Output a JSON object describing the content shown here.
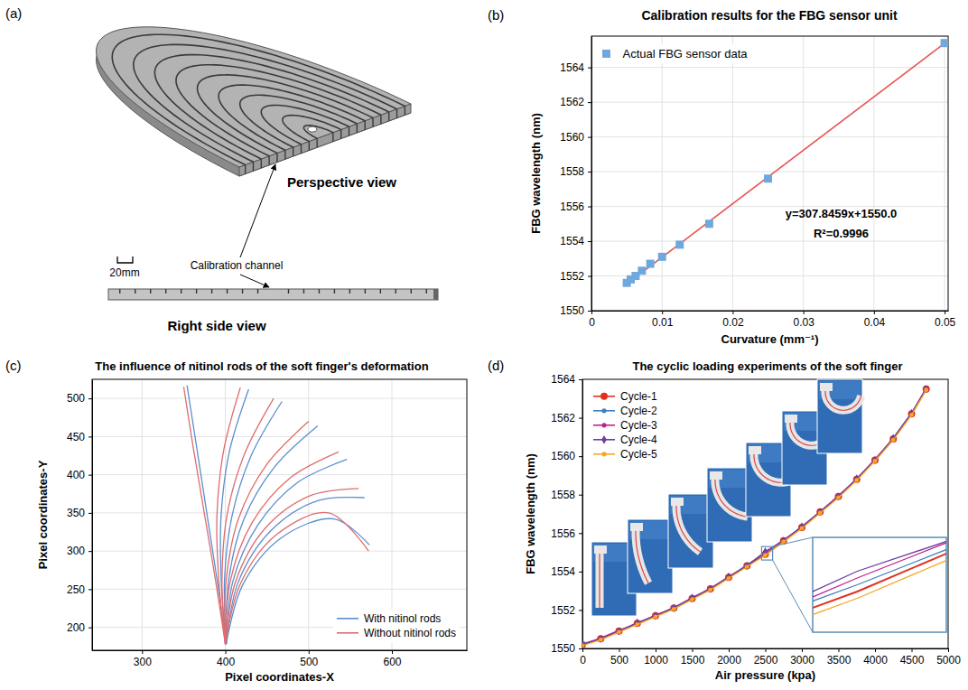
{
  "diagram": {
    "label": "(a)",
    "perspective_view": "Perspective view",
    "annotation": "Calibration channel",
    "scale_bar": "20mm",
    "side_view": "Right side view"
  },
  "chart_data": [
    {
      "label": "(b)",
      "type": "scatter",
      "title": "Calibration results for the FBG sensor unit",
      "x_label": "Curvature (mm⁻¹)",
      "y_label": "FBG wavelength (nm)",
      "xlim": [
        0,
        0.0505
      ],
      "ylim": [
        1550,
        1565.8
      ],
      "xticks": [
        0,
        0.01,
        0.02,
        0.03,
        0.04,
        0.05
      ],
      "yticks": [
        1550,
        1552,
        1554,
        1556,
        1558,
        1560,
        1562,
        1564
      ],
      "grid": true,
      "legend": "upper left",
      "annotations": [
        "y=307.8459x+1550.0",
        "R²=0.9996"
      ],
      "series": [
        {
          "name": "Actual FBG sensor data",
          "type": "scatter",
          "marker": "square",
          "color": "#6fa8dc",
          "x": [
            0.005,
            0.00556,
            0.00625,
            0.00714,
            0.00833,
            0.01,
            0.0125,
            0.01667,
            0.025,
            0.05
          ],
          "values": [
            1551.6,
            1551.8,
            1552.0,
            1552.3,
            1552.7,
            1553.1,
            1553.8,
            1555.0,
            1557.6,
            1565.4
          ]
        },
        {
          "type": "line",
          "line_style": "solid",
          "color": "#e8534f",
          "x": [
            0.005,
            0.05
          ],
          "values": [
            1551.54,
            1565.39
          ]
        }
      ]
    },
    {
      "label": "(c)",
      "type": "line",
      "title": "The influence of nitinol rods of the soft finger's deformation",
      "x_label": "Pixel coordinates-X",
      "y_label": "Pixel coordinates-Y",
      "xlim": [
        240,
        690
      ],
      "ylim": [
        170,
        525
      ],
      "xticks": [
        300,
        400,
        500,
        600
      ],
      "yticks": [
        200,
        250,
        300,
        350,
        400,
        450,
        500
      ],
      "grid": true,
      "legend": "lower right",
      "series": [
        {
          "name": "With nitinol rods",
          "color": "#5b8fd0",
          "line_style": "solid",
          "curves": [
            {
              "x": [
                401,
                390,
                378,
                366,
                354
              ],
              "values": [
                178,
                263,
                348,
                433,
                517
              ]
            },
            {
              "x": [
                401,
                395,
                395,
                405,
                428
              ],
              "values": [
                178,
                263,
                348,
                431,
                512
              ]
            },
            {
              "x": [
                401,
                399,
                408,
                431,
                468
              ],
              "values": [
                178,
                263,
                346,
                425,
                496
              ]
            },
            {
              "x": [
                401,
                404,
                422,
                459,
                511
              ],
              "values": [
                178,
                262,
                341,
                410,
                464
              ]
            },
            {
              "x": [
                401,
                409,
                439,
                487,
                546
              ],
              "values": [
                178,
                260,
                334,
                390,
                420
              ]
            },
            {
              "x": [
                401,
                415,
                454,
                511,
                567
              ],
              "values": [
                178,
                258,
                326,
                366,
                370
              ]
            },
            {
              "x": [
                401,
                421,
                468,
                531,
                573
              ],
              "values": [
                178,
                256,
                318,
                342,
                308
              ]
            }
          ]
        },
        {
          "name": "Without nitinol rods",
          "color": "#e06c6c",
          "line_style": "solid",
          "curves": [
            {
              "x": [
                400,
                388,
                375,
                362,
                350
              ],
              "values": [
                178,
                263,
                348,
                432,
                515
              ]
            },
            {
              "x": [
                400,
                392,
                390,
                398,
                418
              ],
              "values": [
                178,
                263,
                348,
                432,
                514
              ]
            },
            {
              "x": [
                400,
                396,
                402,
                423,
                458
              ],
              "values": [
                178,
                263,
                347,
                427,
                500
              ]
            },
            {
              "x": [
                400,
                401,
                416,
                450,
                500
              ],
              "values": [
                178,
                262,
                343,
                414,
                470
              ]
            },
            {
              "x": [
                400,
                406,
                432,
                478,
                536
              ],
              "values": [
                178,
                261,
                337,
                396,
                430
              ]
            },
            {
              "x": [
                400,
                412,
                448,
                503,
                560
              ],
              "values": [
                178,
                259,
                330,
                373,
                382
              ]
            },
            {
              "x": [
                400,
                418,
                462,
                524,
                572
              ],
              "values": [
                178,
                257,
                322,
                350,
                300
              ]
            }
          ]
        }
      ]
    },
    {
      "label": "(d)",
      "type": "line",
      "title": "The cyclic loading experiments of the soft finger",
      "x_label": "Air pressure (kpa)",
      "y_label": "FBG wavelength (nm)",
      "xlim": [
        0,
        5000
      ],
      "ylim": [
        1550,
        1564
      ],
      "xticks": [
        0,
        500,
        1000,
        1500,
        2000,
        2500,
        3000,
        3500,
        4000,
        4500,
        5000
      ],
      "yticks": [
        1550,
        1552,
        1554,
        1556,
        1558,
        1560,
        1562,
        1564
      ],
      "grid": false,
      "legend": "upper left",
      "zoom": {
        "xlim": [
          2450,
          2600
        ],
        "ylim": [
          1554.6,
          1555.3
        ]
      },
      "x": [
        0,
        250,
        500,
        750,
        1000,
        1250,
        1500,
        1750,
        2000,
        2250,
        2500,
        2750,
        3000,
        3250,
        3500,
        3750,
        4000,
        4250,
        4500,
        4700
      ],
      "series": [
        {
          "name": "Cycle-1",
          "color": "#e0301e",
          "marker": "circle",
          "line_style": "solid",
          "values": [
            1550.2,
            1550.5,
            1550.9,
            1551.3,
            1551.7,
            1552.1,
            1552.6,
            1553.1,
            1553.7,
            1554.3,
            1554.9,
            1555.6,
            1556.3,
            1557.1,
            1557.9,
            1558.8,
            1559.8,
            1560.9,
            1562.2,
            1563.5
          ]
        },
        {
          "name": "Cycle-2",
          "color": "#3f7fbf",
          "marker": "circle",
          "line_style": "solid",
          "values": [
            1550.25,
            1550.5,
            1550.9,
            1551.3,
            1551.7,
            1552.15,
            1552.6,
            1553.1,
            1553.7,
            1554.35,
            1554.95,
            1555.6,
            1556.3,
            1557.1,
            1557.9,
            1558.8,
            1559.8,
            1560.9,
            1562.2,
            1563.5
          ]
        },
        {
          "name": "Cycle-3",
          "color": "#c0248c",
          "marker": "circle",
          "line_style": "solid",
          "values": [
            1550.2,
            1550.55,
            1550.95,
            1551.3,
            1551.75,
            1552.1,
            1552.6,
            1553.15,
            1553.7,
            1554.3,
            1555.0,
            1555.65,
            1556.3,
            1557.1,
            1557.95,
            1558.8,
            1559.85,
            1560.9,
            1562.2,
            1563.55
          ]
        },
        {
          "name": "Cycle-4",
          "color": "#6b3fa0",
          "marker": "diamond",
          "line_style": "solid",
          "values": [
            1550.2,
            1550.5,
            1550.9,
            1551.35,
            1551.7,
            1552.1,
            1552.65,
            1553.1,
            1553.75,
            1554.3,
            1555.05,
            1555.6,
            1556.35,
            1557.1,
            1557.9,
            1558.85,
            1559.8,
            1560.95,
            1562.25,
            1563.5
          ]
        },
        {
          "name": "Cycle-5",
          "color": "#f5a623",
          "marker": "circle",
          "line_style": "solid",
          "values": [
            1550.15,
            1550.45,
            1550.85,
            1551.25,
            1551.65,
            1552.05,
            1552.55,
            1553.05,
            1553.65,
            1554.25,
            1554.85,
            1555.55,
            1556.25,
            1557.05,
            1557.85,
            1558.75,
            1559.75,
            1560.85,
            1562.15,
            1563.45
          ]
        }
      ]
    }
  ]
}
